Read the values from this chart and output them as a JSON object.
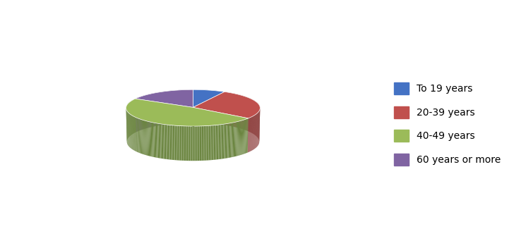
{
  "labels": [
    "To 19 years",
    "20-39 years",
    "40-49 years",
    "60 years or more"
  ],
  "values": [
    8,
    27,
    48,
    17
  ],
  "colors": [
    "#4472C4",
    "#C0504D",
    "#9BBB59",
    "#8064A2"
  ],
  "shadow_colors": [
    "#2E4F8A",
    "#8B3A38",
    "#6B8540",
    "#5A4672"
  ],
  "startangle": 90,
  "figsize": [
    7.45,
    3.52
  ],
  "dpi": 100,
  "legend_fontsize": 10,
  "background_color": "#FFFFFF"
}
